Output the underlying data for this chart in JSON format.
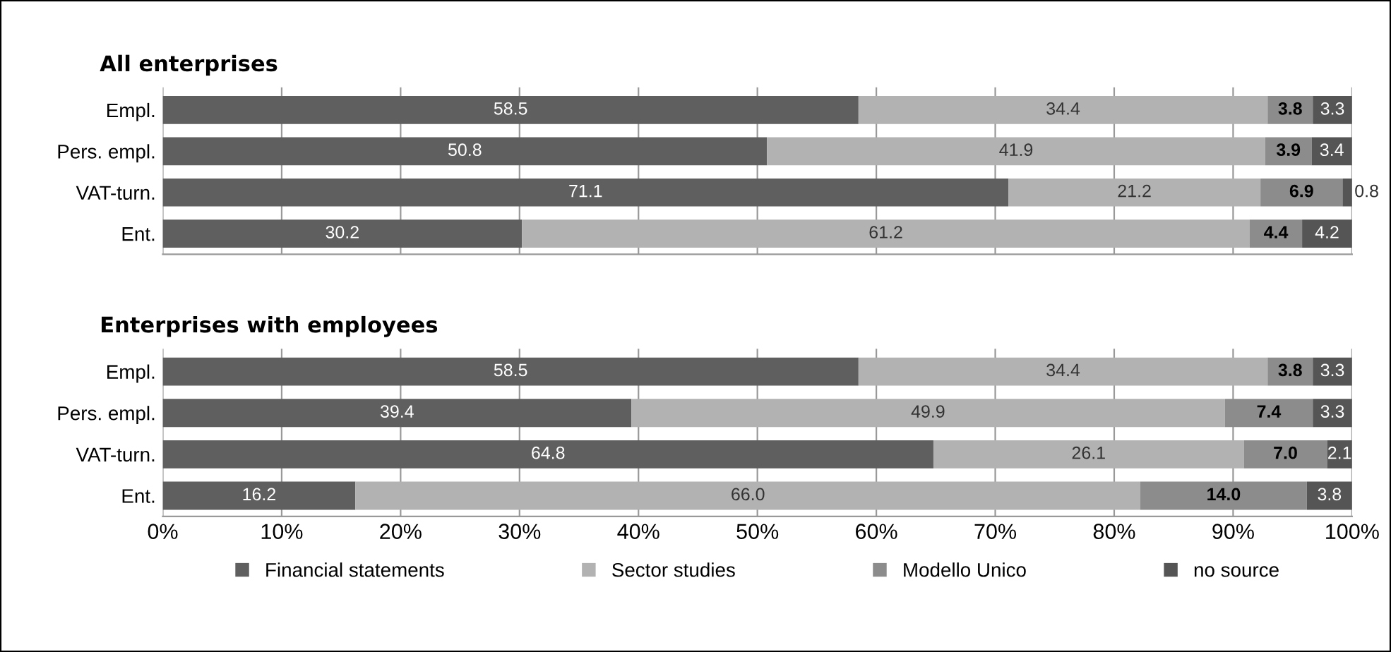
{
  "chart_data": [
    {
      "type": "bar",
      "orientation": "horizontal",
      "stacked": true,
      "title": "All enterprises",
      "categories": [
        "Empl.",
        "Pers. empl.",
        "VAT-turn.",
        "Ent."
      ],
      "xlim": [
        0,
        100
      ],
      "xticks": [
        {
          "value": 0,
          "label": null
        },
        {
          "value": 10,
          "label": null
        },
        {
          "value": 20,
          "label": null
        },
        {
          "value": 30,
          "label": null
        },
        {
          "value": 40,
          "label": null
        },
        {
          "value": 50,
          "label": null
        },
        {
          "value": 60,
          "label": null
        },
        {
          "value": 70,
          "label": null
        },
        {
          "value": 80,
          "label": null
        },
        {
          "value": 90,
          "label": null
        },
        {
          "value": 100,
          "label": null
        }
      ],
      "tick_labels": "y",
      "grid": "x",
      "data_labels": true,
      "series": [
        {
          "color": "#5f5f5f",
          "values": [
            58.5,
            50.8,
            71.1,
            30.2
          ]
        },
        {
          "color": "#b2b2b2",
          "values": [
            34.4,
            41.9,
            21.2,
            61.2
          ]
        },
        {
          "color": "#8c8c8c",
          "values": [
            3.8,
            3.9,
            6.9,
            4.4
          ]
        },
        {
          "color": "#555555",
          "values": [
            3.3,
            3.4,
            0.8,
            4.2
          ]
        }
      ]
    },
    {
      "type": "bar",
      "orientation": "horizontal",
      "stacked": true,
      "title": "Enterprises with employees",
      "categories": [
        "Empl.",
        "Pers. empl.",
        "VAT-turn.",
        "Ent."
      ],
      "xlim": [
        0,
        100
      ],
      "xticks": [
        {
          "value": 0,
          "label": "0%"
        },
        {
          "value": 10,
          "label": "10%"
        },
        {
          "value": 20,
          "label": "20%"
        },
        {
          "value": 30,
          "label": "30%"
        },
        {
          "value": 40,
          "label": "40%"
        },
        {
          "value": 50,
          "label": "50%"
        },
        {
          "value": 60,
          "label": "60%"
        },
        {
          "value": 70,
          "label": "70%"
        },
        {
          "value": 80,
          "label": "80%"
        },
        {
          "value": 90,
          "label": "90%"
        },
        {
          "value": 100,
          "label": "100%"
        }
      ],
      "grid": "x",
      "legend": "bottom",
      "series": [
        {
          "name": "Financial statements",
          "color": "#5f5f5f",
          "values": [
            58.5,
            39.4,
            64.8,
            16.2
          ],
          "value_labels": [
            "58.5",
            "39.4",
            "64.8",
            "16.2"
          ]
        },
        {
          "name": "Sector studies",
          "color": "#b2b2b2",
          "values": [
            34.4,
            49.9,
            26.1,
            66.0
          ],
          "value_labels": [
            "34.4",
            "49.9",
            "26.1",
            "66.0"
          ]
        },
        {
          "name": "Modello Unico",
          "color": "#8c8c8c",
          "values": [
            3.8,
            7.4,
            7.0,
            14.0
          ],
          "value_labels": [
            "3.8",
            "7.4",
            "7.0",
            "14.0"
          ]
        },
        {
          "name": "no source",
          "color": "#555555",
          "values": [
            3.3,
            3.3,
            2.1,
            3.8
          ],
          "value_labels": [
            "3.3",
            "3.3",
            "2.1",
            "3.8"
          ]
        }
      ]
    }
  ]
}
